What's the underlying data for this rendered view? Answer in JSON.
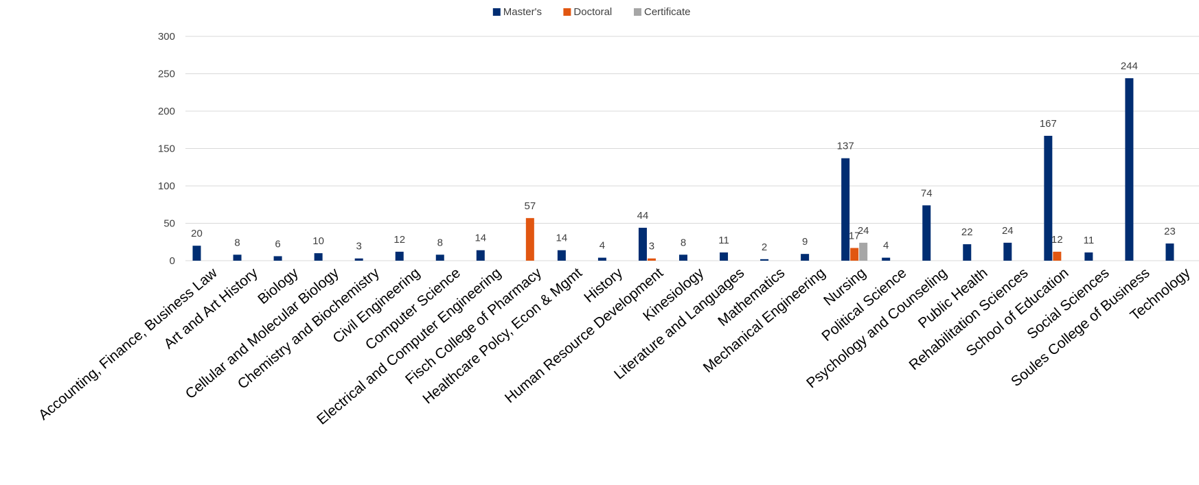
{
  "chart_data": {
    "type": "bar",
    "categories": [
      "Accounting, Finance, Business Law",
      "Art and Art History",
      "Biology",
      "Cellular and Molecular Biology",
      "Chemistry and Biochemistry",
      "Civil Engineering",
      "Computer Science",
      "Electrical and Computer Engineering",
      "Fisch College of Pharmacy",
      "Healthcare Polcy, Econ & Mgmt",
      "History",
      "Human Resource Development",
      "Kinesiology",
      "Literature and Languages",
      "Mathematics",
      "Mechanical Engineering",
      "Nursing",
      "Political Science",
      "Psychology and Counseling",
      "Public Health",
      "Rehabilitation Sciences",
      "School of Education",
      "Social Sciences",
      "Soules College of Business",
      "Technology"
    ],
    "series": [
      {
        "name": "Master's",
        "color": "#002d72",
        "values": [
          20,
          8,
          6,
          10,
          3,
          12,
          8,
          14,
          null,
          14,
          4,
          44,
          8,
          11,
          2,
          9,
          137,
          4,
          74,
          22,
          24,
          167,
          11,
          244,
          23
        ]
      },
      {
        "name": "Doctoral",
        "color": "#e15611",
        "values": [
          null,
          null,
          null,
          null,
          null,
          null,
          null,
          null,
          57,
          null,
          null,
          3,
          null,
          null,
          null,
          null,
          17,
          null,
          null,
          null,
          null,
          12,
          null,
          null,
          null
        ]
      },
      {
        "name": "Certificate",
        "color": "#a6a6a6",
        "values": [
          null,
          null,
          null,
          null,
          null,
          null,
          null,
          null,
          null,
          null,
          null,
          null,
          null,
          null,
          null,
          null,
          24,
          null,
          null,
          null,
          null,
          null,
          null,
          null,
          null
        ]
      }
    ],
    "y_ticks": [
      "0",
      "50",
      "100",
      "150",
      "200",
      "250",
      "300"
    ],
    "ylim": [
      0,
      300
    ],
    "grid": true,
    "legend": "top-center"
  }
}
